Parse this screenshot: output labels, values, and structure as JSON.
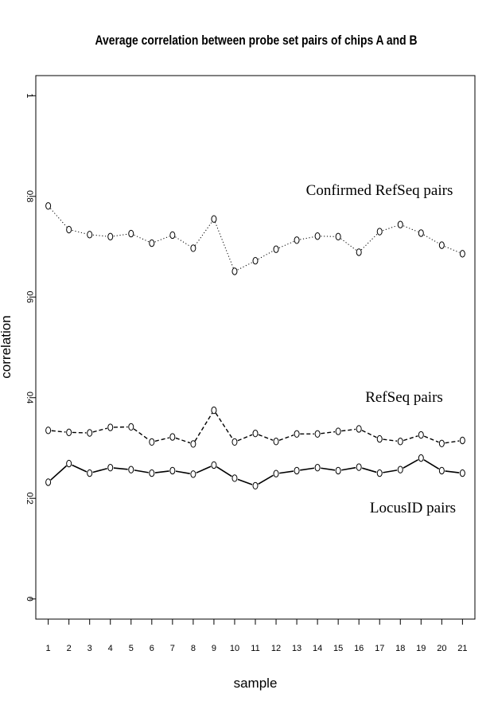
{
  "chart_data": {
    "type": "line",
    "title": "Average correlation between probe set pairs of chips A and B",
    "xlabel": "sample",
    "ylabel": "correlation",
    "x": [
      1,
      2,
      3,
      4,
      5,
      6,
      7,
      8,
      9,
      10,
      11,
      12,
      13,
      14,
      15,
      16,
      17,
      18,
      19,
      20,
      21
    ],
    "xlim": [
      0.4,
      21.6
    ],
    "ylim": [
      -0.04,
      1.04
    ],
    "yticks": [
      0,
      0.2,
      0.4,
      0.6,
      0.8,
      1
    ],
    "ytick_labels": [
      "0",
      "0.2",
      "0.4",
      "0.6",
      "0.8",
      "1"
    ],
    "series": [
      {
        "name": "Confirmed RefSeq pairs",
        "line_style": "dotted",
        "values": [
          0.781,
          0.734,
          0.724,
          0.72,
          0.726,
          0.707,
          0.723,
          0.697,
          0.755,
          0.651,
          0.672,
          0.695,
          0.713,
          0.721,
          0.72,
          0.689,
          0.73,
          0.744,
          0.727,
          0.703,
          0.686
        ]
      },
      {
        "name": "RefSeq pairs",
        "line_style": "dashed",
        "values": [
          0.335,
          0.331,
          0.33,
          0.341,
          0.342,
          0.312,
          0.322,
          0.308,
          0.375,
          0.312,
          0.329,
          0.313,
          0.328,
          0.328,
          0.333,
          0.338,
          0.318,
          0.313,
          0.326,
          0.309,
          0.315
        ]
      },
      {
        "name": "LocusID pairs",
        "line_style": "solid",
        "values": [
          0.232,
          0.269,
          0.25,
          0.261,
          0.257,
          0.25,
          0.255,
          0.248,
          0.266,
          0.24,
          0.225,
          0.249,
          0.255,
          0.261,
          0.255,
          0.262,
          0.25,
          0.257,
          0.28,
          0.255,
          0.25
        ]
      }
    ],
    "legend": "inline labels",
    "grid": false,
    "colors": {
      "line": "#000000",
      "background": "#ffffff"
    }
  }
}
